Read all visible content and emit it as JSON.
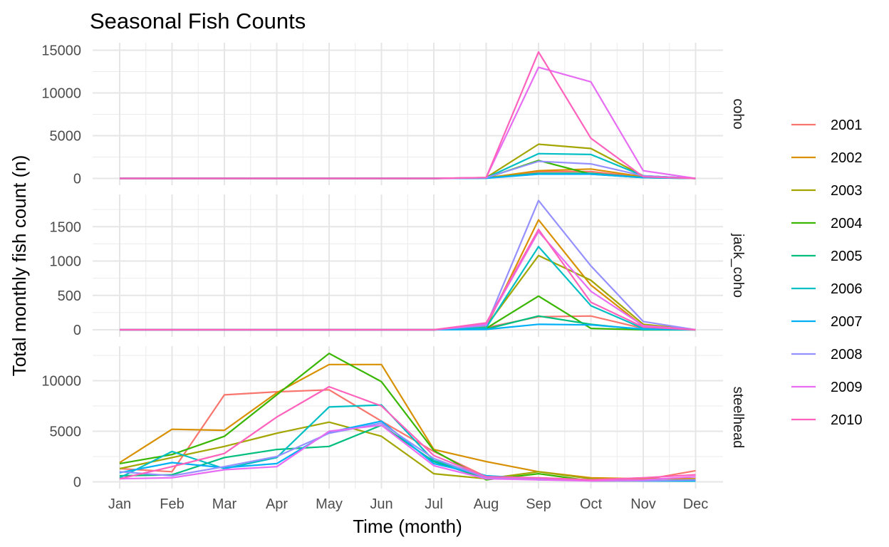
{
  "chart_data": {
    "type": "line",
    "title": "Seasonal Fish Counts",
    "xlabel": "Time (month)",
    "ylabel": "Total monthly fish count (n)",
    "categories": [
      "Jan",
      "Feb",
      "Mar",
      "Apr",
      "May",
      "Jun",
      "Jul",
      "Aug",
      "Sep",
      "Oct",
      "Nov",
      "Dec"
    ],
    "grid": true,
    "legend_position": "right",
    "facet_orientation": "rows",
    "legend": {
      "entries": [
        {
          "name": "2001",
          "color": "#F8766D"
        },
        {
          "name": "2002",
          "color": "#D89000"
        },
        {
          "name": "2003",
          "color": "#A3A500"
        },
        {
          "name": "2004",
          "color": "#39B600"
        },
        {
          "name": "2005",
          "color": "#00BF7D"
        },
        {
          "name": "2006",
          "color": "#00BFC4"
        },
        {
          "name": "2007",
          "color": "#00B0F6"
        },
        {
          "name": "2008",
          "color": "#9590FF"
        },
        {
          "name": "2009",
          "color": "#E76BF3"
        },
        {
          "name": "2010",
          "color": "#FF62BC"
        }
      ]
    },
    "panels": [
      {
        "label": "coho",
        "ylim": [
          0,
          15000
        ],
        "yticks": [
          0,
          5000,
          10000,
          15000
        ],
        "tick_labels": [
          "0",
          "5000",
          "10000",
          "15000"
        ],
        "series": [
          {
            "name": "2001",
            "values": [
              0,
              0,
              0,
              0,
              0,
              0,
              0,
              50,
              800,
              800,
              150,
              0
            ]
          },
          {
            "name": "2002",
            "values": [
              0,
              0,
              0,
              0,
              0,
              0,
              0,
              50,
              900,
              1100,
              200,
              0
            ]
          },
          {
            "name": "2003",
            "values": [
              0,
              0,
              0,
              0,
              0,
              0,
              0,
              100,
              4000,
              3500,
              300,
              0
            ]
          },
          {
            "name": "2004",
            "values": [
              0,
              0,
              0,
              0,
              0,
              0,
              0,
              50,
              2100,
              500,
              100,
              0
            ]
          },
          {
            "name": "2005",
            "values": [
              0,
              0,
              0,
              0,
              0,
              0,
              0,
              30,
              600,
              600,
              100,
              0
            ]
          },
          {
            "name": "2006",
            "values": [
              0,
              0,
              0,
              0,
              0,
              0,
              0,
              60,
              2900,
              2800,
              300,
              0
            ]
          },
          {
            "name": "2007",
            "values": [
              0,
              0,
              0,
              0,
              0,
              0,
              0,
              30,
              500,
              500,
              100,
              0
            ]
          },
          {
            "name": "2008",
            "values": [
              0,
              0,
              0,
              0,
              0,
              0,
              0,
              80,
              2000,
              1700,
              300,
              0
            ]
          },
          {
            "name": "2009",
            "values": [
              0,
              0,
              0,
              0,
              0,
              0,
              0,
              100,
              13000,
              11300,
              900,
              0
            ]
          },
          {
            "name": "2010",
            "values": [
              0,
              0,
              0,
              0,
              0,
              0,
              0,
              100,
              14800,
              4700,
              200,
              0
            ]
          }
        ]
      },
      {
        "label": "jack_coho",
        "ylim": [
          0,
          1900
        ],
        "yticks": [
          0,
          500,
          1000,
          1500
        ],
        "tick_labels": [
          "0",
          "500",
          "1000",
          "1500"
        ],
        "series": [
          {
            "name": "2001",
            "values": [
              0,
              0,
              0,
              0,
              0,
              0,
              0,
              30,
              190,
              200,
              20,
              0
            ]
          },
          {
            "name": "2002",
            "values": [
              0,
              0,
              0,
              0,
              0,
              0,
              0,
              40,
              1600,
              650,
              50,
              0
            ]
          },
          {
            "name": "2003",
            "values": [
              0,
              0,
              0,
              0,
              0,
              0,
              0,
              50,
              1080,
              720,
              80,
              0
            ]
          },
          {
            "name": "2004",
            "values": [
              0,
              0,
              0,
              0,
              0,
              0,
              0,
              20,
              490,
              20,
              0,
              0
            ]
          },
          {
            "name": "2005",
            "values": [
              0,
              0,
              0,
              0,
              0,
              0,
              0,
              10,
              200,
              80,
              0,
              0
            ]
          },
          {
            "name": "2006",
            "values": [
              0,
              0,
              0,
              0,
              0,
              0,
              0,
              30,
              1210,
              350,
              20,
              0
            ]
          },
          {
            "name": "2007",
            "values": [
              0,
              0,
              0,
              0,
              0,
              0,
              0,
              5,
              80,
              70,
              10,
              0
            ]
          },
          {
            "name": "2008",
            "values": [
              0,
              0,
              0,
              0,
              0,
              0,
              0,
              60,
              1880,
              930,
              120,
              0
            ]
          },
          {
            "name": "2009",
            "values": [
              0,
              0,
              0,
              0,
              0,
              0,
              0,
              80,
              1430,
              560,
              60,
              0
            ]
          },
          {
            "name": "2010",
            "values": [
              0,
              0,
              0,
              0,
              0,
              0,
              0,
              100,
              1460,
              400,
              40,
              0
            ]
          }
        ]
      },
      {
        "label": "steelhead",
        "ylim": [
          0,
          13500
        ],
        "yticks": [
          0,
          5000,
          10000
        ],
        "tick_labels": [
          "0",
          "5000",
          "10000"
        ],
        "series": [
          {
            "name": "2001",
            "values": [
              1300,
              1000,
              8600,
              8900,
              9100,
              6000,
              3000,
              500,
              300,
              200,
              200,
              1100
            ]
          },
          {
            "name": "2002",
            "values": [
              1900,
              5200,
              5100,
              8800,
              11600,
              11600,
              3200,
              2000,
              1000,
              400,
              300,
              300
            ]
          },
          {
            "name": "2003",
            "values": [
              1300,
              2400,
              3500,
              4800,
              5900,
              4500,
              800,
              300,
              1000,
              300,
              100,
              100
            ]
          },
          {
            "name": "2004",
            "values": [
              1800,
              2700,
              4500,
              8600,
              12700,
              9900,
              3100,
              200,
              800,
              100,
              100,
              200
            ]
          },
          {
            "name": "2005",
            "values": [
              600,
              700,
              2400,
              3200,
              3500,
              5600,
              2000,
              300,
              300,
              200,
              100,
              100
            ]
          },
          {
            "name": "2006",
            "values": [
              400,
              3000,
              1300,
              2400,
              7400,
              7600,
              2100,
              600,
              300,
              200,
              100,
              100
            ]
          },
          {
            "name": "2007",
            "values": [
              900,
              1900,
              1400,
              1800,
              4900,
              6000,
              1800,
              600,
              200,
              200,
              100,
              100
            ]
          },
          {
            "name": "2008",
            "values": [
              1000,
              600,
              1500,
              2500,
              4800,
              5800,
              2300,
              400,
              300,
              100,
              100,
              200
            ]
          },
          {
            "name": "2009",
            "values": [
              300,
              400,
              1200,
              1500,
              5000,
              5600,
              1600,
              300,
              200,
              100,
              200,
              500
            ]
          },
          {
            "name": "2010",
            "values": [
              300,
              1500,
              2800,
              6400,
              9400,
              7500,
              2600,
              500,
              400,
              200,
              400,
              700
            ]
          }
        ]
      }
    ]
  }
}
